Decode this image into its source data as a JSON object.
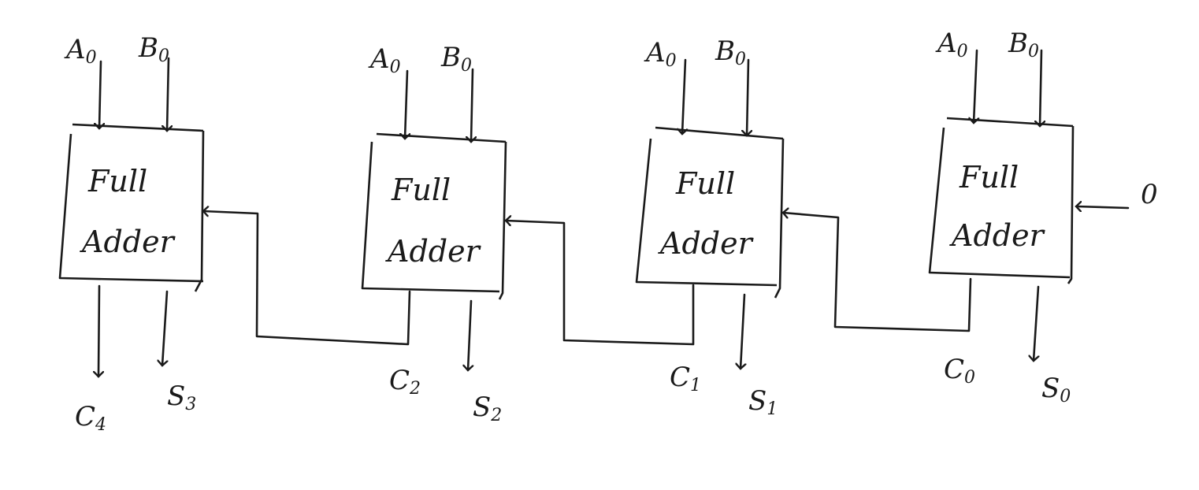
{
  "diagram": {
    "adders": [
      {
        "id": "fa3",
        "title_line1": "Full",
        "title_line2": "Adder",
        "input_a": "A",
        "input_a_sub": "0",
        "input_b": "B",
        "input_b_sub": "0",
        "carry_out": "C",
        "carry_out_sub": "4",
        "sum": "S",
        "sum_sub": "3"
      },
      {
        "id": "fa2",
        "title_line1": "Full",
        "title_line2": "Adder",
        "input_a": "A",
        "input_a_sub": "0",
        "input_b": "B",
        "input_b_sub": "0",
        "carry_out": "C",
        "carry_out_sub": "2",
        "sum": "S",
        "sum_sub": "2"
      },
      {
        "id": "fa1",
        "title_line1": "Full",
        "title_line2": "Adder",
        "input_a": "A",
        "input_a_sub": "0",
        "input_b": "B",
        "input_b_sub": "0",
        "carry_out": "C",
        "carry_out_sub": "1",
        "sum": "S",
        "sum_sub": "1"
      },
      {
        "id": "fa0",
        "title_line1": "Full",
        "title_line2": "Adder",
        "input_a": "A",
        "input_a_sub": "0",
        "input_b": "B",
        "input_b_sub": "0",
        "carry_out": "C",
        "carry_out_sub": "0",
        "sum": "S",
        "sum_sub": "0"
      }
    ],
    "carry_in": "0",
    "stroke_color": "#1a1a1a"
  }
}
